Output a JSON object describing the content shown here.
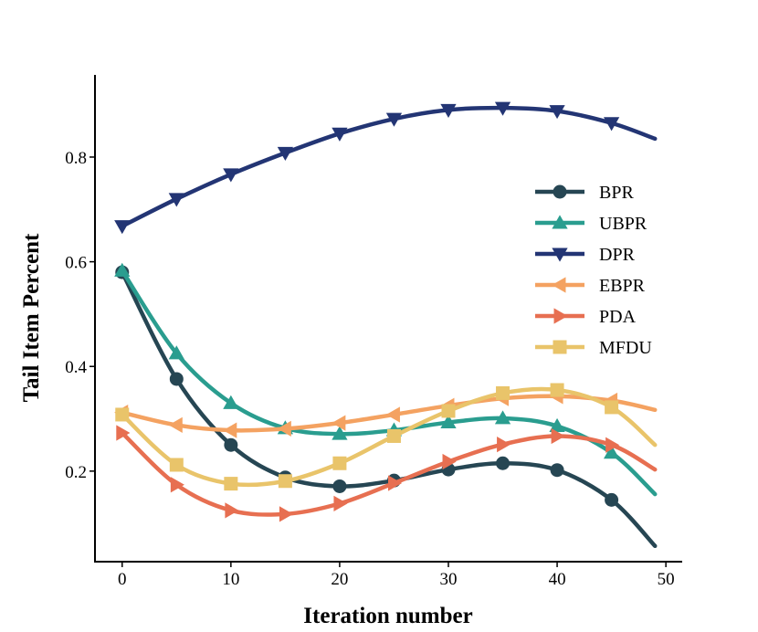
{
  "chart_data": {
    "type": "line",
    "title": "",
    "xlabel": "Iteration number",
    "ylabel": "Tail Item Percent",
    "xlim": [
      -2.5,
      51.5
    ],
    "ylim": [
      0.027,
      0.957
    ],
    "xticks": [
      0,
      10,
      20,
      30,
      40,
      50
    ],
    "yticks": [
      0.2,
      0.4,
      0.6,
      0.8
    ],
    "xtick_labels": [
      "0",
      "10",
      "20",
      "30",
      "40",
      "50"
    ],
    "ytick_labels": [
      "0.2",
      "0.4",
      "0.6",
      "0.8"
    ],
    "grid": false,
    "legend_position": "center-right",
    "x": [
      0,
      5,
      10,
      15,
      20,
      25,
      30,
      35,
      40,
      45
    ],
    "series": [
      {
        "name": "BPR",
        "color": "#264653",
        "marker": "circle",
        "values": [
          0.58,
          0.376,
          0.25,
          0.188,
          0.171,
          0.182,
          0.203,
          0.215,
          0.202,
          0.145
        ],
        "curve_end": {
          "x": 49,
          "y": 0.057
        }
      },
      {
        "name": "UBPR",
        "color": "#2a9d8f",
        "marker": "triangle-up",
        "values": [
          0.583,
          0.425,
          0.33,
          0.282,
          0.271,
          0.278,
          0.293,
          0.301,
          0.286,
          0.235
        ],
        "curve_end": {
          "x": 49,
          "y": 0.156
        }
      },
      {
        "name": "DPR",
        "color": "#233574",
        "marker": "triangle-down",
        "values": [
          0.668,
          0.72,
          0.767,
          0.808,
          0.845,
          0.873,
          0.89,
          0.894,
          0.888,
          0.865
        ],
        "curve_end": {
          "x": 49,
          "y": 0.835
        }
      },
      {
        "name": "EBPR",
        "color": "#f4a261",
        "marker": "triangle-left",
        "values": [
          0.312,
          0.288,
          0.278,
          0.281,
          0.292,
          0.308,
          0.325,
          0.339,
          0.343,
          0.335
        ],
        "curve_end": {
          "x": 49,
          "y": 0.317
        }
      },
      {
        "name": "PDA",
        "color": "#e76f51",
        "marker": "triangle-right",
        "values": [
          0.273,
          0.174,
          0.125,
          0.118,
          0.138,
          0.177,
          0.218,
          0.251,
          0.267,
          0.25
        ],
        "curve_end": {
          "x": 49,
          "y": 0.203
        }
      },
      {
        "name": "MFDU",
        "color": "#e9c46a",
        "marker": "square",
        "values": [
          0.308,
          0.212,
          0.176,
          0.181,
          0.215,
          0.267,
          0.315,
          0.349,
          0.355,
          0.322
        ],
        "curve_end": {
          "x": 49,
          "y": 0.25
        }
      }
    ]
  }
}
